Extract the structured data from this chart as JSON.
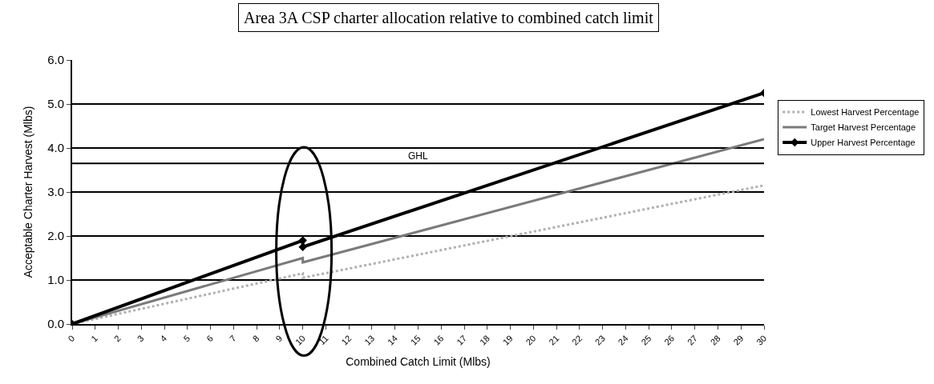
{
  "chart_data": {
    "type": "line",
    "title": "Area 3A CSP charter allocation relative to combined catch limit",
    "xlabel": "Combined Catch Limit (Mlbs)",
    "ylabel": "Acceptable Charter Harvest (Mlbs)",
    "series": [
      {
        "name": "Lowest Harvest Percentage",
        "color": "#b0b0b0",
        "x": [
          0,
          10,
          10,
          30
        ],
        "values": [
          0,
          1.15,
          1.05,
          3.15
        ],
        "line_style": "dotted",
        "marker": "none"
      },
      {
        "name": "Target Harvest Percentage",
        "color": "#7a7a7a",
        "x": [
          0,
          10,
          10,
          30
        ],
        "values": [
          0,
          1.5,
          1.4,
          4.2
        ],
        "line_style": "solid",
        "marker": "none"
      },
      {
        "name": "Upper Harvest Percentage",
        "color": "#000000",
        "x": [
          0,
          10,
          10,
          30
        ],
        "values": [
          0,
          1.9,
          1.75,
          5.25
        ],
        "line_style": "solid",
        "marker": "diamond"
      }
    ],
    "xlim": [
      0,
      30
    ],
    "xticks": [
      0,
      1,
      2,
      3,
      4,
      5,
      6,
      7,
      8,
      9,
      10,
      11,
      12,
      13,
      14,
      15,
      16,
      17,
      18,
      19,
      20,
      21,
      22,
      23,
      24,
      25,
      26,
      27,
      28,
      29,
      30
    ],
    "ylim": [
      0,
      6
    ],
    "yticks": [
      {
        "value": 0,
        "label": "0.0"
      },
      {
        "value": 1,
        "label": "1.0"
      },
      {
        "value": 2,
        "label": "2.0"
      },
      {
        "value": 3,
        "label": "3.0"
      },
      {
        "value": 4,
        "label": "4.0"
      },
      {
        "value": 5,
        "label": "5.0"
      },
      {
        "value": 6,
        "label": "6.0"
      }
    ],
    "ref_lines": [
      {
        "axis": "y",
        "value": 3.65,
        "label": "GHL",
        "color": "#000000"
      }
    ],
    "grid": "y",
    "legend": "right"
  }
}
